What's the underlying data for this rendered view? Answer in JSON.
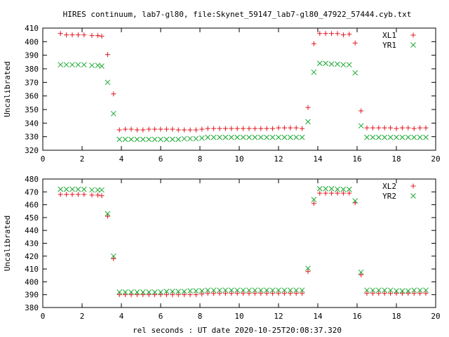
{
  "title": "HIRES continuum, lab7-gl80, file:Skynet_59147_lab7-gl80_47922_57444.cyb.txt",
  "xlabel": "rel seconds : UT date 2020-10-25T20:08:37.320",
  "colors": {
    "red": "#e0141e",
    "green": "#18a830",
    "axis": "#000000"
  },
  "chart_data": [
    {
      "type": "scatter",
      "ylabel": "Uncalibrated",
      "xlim": [
        0,
        20
      ],
      "ylim": [
        320,
        410
      ],
      "xticks": [
        0,
        2,
        4,
        6,
        8,
        10,
        12,
        14,
        16,
        18,
        20
      ],
      "yticks": [
        320,
        330,
        340,
        350,
        360,
        370,
        380,
        390,
        400,
        410
      ],
      "legend_position": "top-right",
      "series": [
        {
          "name": "XL1",
          "marker": "plus",
          "color": "#e0141e",
          "x": [
            0.9,
            1.2,
            1.5,
            1.8,
            2.1,
            2.5,
            2.8,
            3.0,
            3.3,
            3.6,
            3.9,
            4.2,
            4.5,
            4.8,
            5.1,
            5.4,
            5.7,
            6.0,
            6.3,
            6.6,
            6.9,
            7.2,
            7.5,
            7.8,
            8.1,
            8.4,
            8.7,
            9.0,
            9.3,
            9.6,
            9.9,
            10.2,
            10.5,
            10.8,
            11.1,
            11.4,
            11.7,
            12.0,
            12.3,
            12.6,
            12.9,
            13.2,
            13.5,
            13.8,
            14.1,
            14.4,
            14.7,
            15.0,
            15.3,
            15.6,
            15.9,
            16.2,
            16.5,
            16.8,
            17.1,
            17.4,
            17.7,
            18.0,
            18.3,
            18.6,
            18.9,
            19.2,
            19.5
          ],
          "y": [
            406,
            405,
            405,
            405,
            405,
            404.5,
            404.5,
            404,
            390.5,
            361.5,
            335,
            335.5,
            335.5,
            335,
            335,
            335.5,
            335.5,
            335.5,
            335.5,
            335.5,
            335,
            335,
            335,
            335,
            335.5,
            336,
            336,
            336,
            336,
            336,
            336,
            336,
            336,
            336,
            336,
            336,
            336,
            336.5,
            336.5,
            336.5,
            336.5,
            336,
            351.5,
            398.5,
            406,
            406,
            406,
            406,
            405,
            405.5,
            399,
            349,
            336.5,
            336.5,
            336.5,
            336.5,
            336.5,
            336,
            336.5,
            336.5,
            336,
            336.5,
            336.5
          ]
        },
        {
          "name": "YR1",
          "marker": "cross",
          "color": "#18a830",
          "x": [
            0.9,
            1.2,
            1.5,
            1.8,
            2.1,
            2.5,
            2.8,
            3.0,
            3.3,
            3.6,
            3.9,
            4.2,
            4.5,
            4.8,
            5.1,
            5.4,
            5.7,
            6.0,
            6.3,
            6.6,
            6.9,
            7.2,
            7.5,
            7.8,
            8.1,
            8.4,
            8.7,
            9.0,
            9.3,
            9.6,
            9.9,
            10.2,
            10.5,
            10.8,
            11.1,
            11.4,
            11.7,
            12.0,
            12.3,
            12.6,
            12.9,
            13.2,
            13.5,
            13.8,
            14.1,
            14.4,
            14.7,
            15.0,
            15.3,
            15.6,
            15.9,
            16.2,
            16.5,
            16.8,
            17.1,
            17.4,
            17.7,
            18.0,
            18.3,
            18.6,
            18.9,
            19.2,
            19.5
          ],
          "y": [
            383,
            383,
            383,
            383,
            383,
            382.5,
            382.5,
            382,
            370,
            347,
            328,
            328,
            328,
            328,
            328,
            328,
            328,
            328,
            328,
            328,
            328,
            328.5,
            328.5,
            328.5,
            329,
            329.5,
            329.5,
            329.5,
            329.5,
            329.5,
            329.5,
            329.5,
            329.5,
            329.5,
            329.5,
            329.5,
            329.5,
            329.5,
            329.5,
            329.5,
            329.5,
            329.5,
            341,
            377.5,
            384,
            384,
            383.5,
            383.5,
            383,
            383,
            377,
            338,
            329.5,
            329.5,
            329.5,
            329.5,
            329.5,
            329.5,
            329.5,
            329.5,
            329.5,
            329.5,
            329.5
          ]
        }
      ]
    },
    {
      "type": "scatter",
      "ylabel": "Uncalibrated",
      "xlim": [
        0,
        20
      ],
      "ylim": [
        380,
        480
      ],
      "xticks": [
        0,
        2,
        4,
        6,
        8,
        10,
        12,
        14,
        16,
        18,
        20
      ],
      "yticks": [
        380,
        390,
        400,
        410,
        420,
        430,
        440,
        450,
        460,
        470,
        480
      ],
      "legend_position": "top-right",
      "series": [
        {
          "name": "XL2",
          "marker": "plus",
          "color": "#e0141e",
          "x": [
            0.9,
            1.2,
            1.5,
            1.8,
            2.1,
            2.5,
            2.8,
            3.0,
            3.3,
            3.6,
            3.9,
            4.2,
            4.5,
            4.8,
            5.1,
            5.4,
            5.7,
            6.0,
            6.3,
            6.6,
            6.9,
            7.2,
            7.5,
            7.8,
            8.1,
            8.4,
            8.7,
            9.0,
            9.3,
            9.6,
            9.9,
            10.2,
            10.5,
            10.8,
            11.1,
            11.4,
            11.7,
            12.0,
            12.3,
            12.6,
            12.9,
            13.2,
            13.5,
            13.8,
            14.1,
            14.4,
            14.7,
            15.0,
            15.3,
            15.6,
            15.9,
            16.2,
            16.5,
            16.8,
            17.1,
            17.4,
            17.7,
            18.0,
            18.3,
            18.6,
            18.9,
            19.2,
            19.5
          ],
          "y": [
            468,
            468,
            468,
            468,
            468,
            467.5,
            467.5,
            467,
            451,
            418,
            390,
            390,
            390,
            390,
            390,
            390,
            390,
            390,
            390,
            390,
            390,
            390,
            390,
            390,
            390.5,
            391,
            391,
            391,
            391,
            391,
            391,
            391,
            391,
            391,
            391,
            391,
            391,
            391,
            391,
            391,
            391,
            391,
            408,
            461,
            469,
            469,
            469,
            469,
            469,
            469,
            461.5,
            405.5,
            391,
            391,
            391,
            391,
            391,
            391,
            391,
            391,
            391,
            391,
            391
          ]
        },
        {
          "name": "YR2",
          "marker": "cross",
          "color": "#18a830",
          "x": [
            0.9,
            1.2,
            1.5,
            1.8,
            2.1,
            2.5,
            2.8,
            3.0,
            3.3,
            3.6,
            3.9,
            4.2,
            4.5,
            4.8,
            5.1,
            5.4,
            5.7,
            6.0,
            6.3,
            6.6,
            6.9,
            7.2,
            7.5,
            7.8,
            8.1,
            8.4,
            8.7,
            9.0,
            9.3,
            9.6,
            9.9,
            10.2,
            10.5,
            10.8,
            11.1,
            11.4,
            11.7,
            12.0,
            12.3,
            12.6,
            12.9,
            13.2,
            13.5,
            13.8,
            14.1,
            14.4,
            14.7,
            15.0,
            15.3,
            15.6,
            15.9,
            16.2,
            16.5,
            16.8,
            17.1,
            17.4,
            17.7,
            18.0,
            18.3,
            18.6,
            18.9,
            19.2,
            19.5
          ],
          "y": [
            472,
            472,
            472,
            472,
            472,
            471.5,
            471.5,
            471.5,
            453,
            420,
            392,
            392,
            392,
            392,
            392,
            392,
            392,
            392,
            392.5,
            392.5,
            392.5,
            392.5,
            393,
            393,
            393,
            393.5,
            393.5,
            393.5,
            393.5,
            393.5,
            393.5,
            393.5,
            393.5,
            393.5,
            393.5,
            393.5,
            393.5,
            393.5,
            393.5,
            393.5,
            393.5,
            393.5,
            410.5,
            464,
            472.5,
            472.5,
            472.5,
            472,
            472,
            472,
            463,
            407.5,
            393.5,
            393.5,
            393.5,
            393.5,
            393.5,
            393,
            393,
            393,
            393.5,
            393.5,
            393.5
          ]
        }
      ]
    }
  ]
}
